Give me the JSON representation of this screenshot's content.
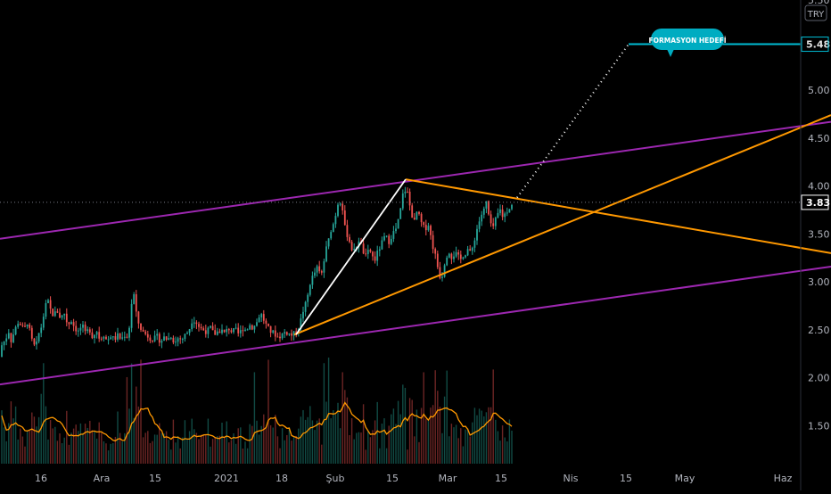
{
  "chart_data": {
    "type": "candlestick",
    "currency": "TRY",
    "current_price": 3.83,
    "target_price": 5.48,
    "target_label": "FORMASYON HEDEFİ",
    "y_ticks": [
      1.5,
      2.0,
      2.5,
      3.0,
      3.5,
      4.0,
      4.5,
      5.0
    ],
    "y_range": [
      1.25,
      5.82
    ],
    "x_ticks": [
      "16",
      "Ara",
      "15",
      "2021",
      "18",
      "Şub",
      "15",
      "Mar",
      "15",
      "Nis",
      "15",
      "May",
      "Haz"
    ],
    "grid": false,
    "price_path": [
      [
        0,
        2.22
      ],
      [
        3,
        2.4
      ],
      [
        6,
        2.36
      ],
      [
        9,
        2.52
      ],
      [
        12,
        2.38
      ],
      [
        16,
        2.48
      ],
      [
        20,
        2.58
      ],
      [
        24,
        2.55
      ],
      [
        27,
        2.48
      ],
      [
        30,
        2.6
      ],
      [
        33,
        2.5
      ],
      [
        36,
        2.38
      ],
      [
        40,
        2.3
      ],
      [
        43,
        2.45
      ],
      [
        46,
        2.52
      ],
      [
        50,
        2.7
      ],
      [
        53,
        2.82
      ],
      [
        56,
        2.72
      ],
      [
        60,
        2.65
      ],
      [
        64,
        2.7
      ],
      [
        68,
        2.62
      ],
      [
        72,
        2.68
      ],
      [
        76,
        2.55
      ],
      [
        80,
        2.6
      ],
      [
        84,
        2.52
      ],
      [
        88,
        2.48
      ],
      [
        92,
        2.55
      ],
      [
        96,
        2.45
      ],
      [
        100,
        2.52
      ],
      [
        104,
        2.42
      ],
      [
        108,
        2.5
      ],
      [
        112,
        2.4
      ],
      [
        116,
        2.46
      ],
      [
        120,
        2.38
      ],
      [
        124,
        2.44
      ],
      [
        128,
        2.4
      ],
      [
        132,
        2.44
      ],
      [
        136,
        2.4
      ],
      [
        140,
        2.45
      ],
      [
        144,
        2.42
      ],
      [
        147,
        2.75
      ],
      [
        150,
        2.88
      ],
      [
        153,
        2.65
      ],
      [
        156,
        2.55
      ],
      [
        160,
        2.48
      ],
      [
        164,
        2.45
      ],
      [
        168,
        2.42
      ],
      [
        172,
        2.4
      ],
      [
        176,
        2.43
      ],
      [
        180,
        2.38
      ],
      [
        184,
        2.42
      ],
      [
        188,
        2.4
      ],
      [
        192,
        2.44
      ],
      [
        196,
        2.36
      ],
      [
        200,
        2.42
      ],
      [
        204,
        2.4
      ],
      [
        208,
        2.45
      ],
      [
        212,
        2.5
      ],
      [
        216,
        2.62
      ],
      [
        220,
        2.58
      ],
      [
        224,
        2.52
      ],
      [
        228,
        2.5
      ],
      [
        232,
        2.48
      ],
      [
        236,
        2.52
      ],
      [
        240,
        2.45
      ],
      [
        244,
        2.48
      ],
      [
        248,
        2.5
      ],
      [
        252,
        2.46
      ],
      [
        256,
        2.52
      ],
      [
        260,
        2.48
      ],
      [
        264,
        2.5
      ],
      [
        268,
        2.45
      ],
      [
        272,
        2.52
      ],
      [
        276,
        2.5
      ],
      [
        280,
        2.55
      ],
      [
        284,
        2.52
      ],
      [
        288,
        2.58
      ],
      [
        292,
        2.68
      ],
      [
        296,
        2.6
      ],
      [
        300,
        2.52
      ],
      [
        304,
        2.48
      ],
      [
        308,
        2.46
      ],
      [
        312,
        2.42
      ],
      [
        316,
        2.45
      ],
      [
        320,
        2.48
      ],
      [
        324,
        2.46
      ],
      [
        328,
        2.44
      ],
      [
        332,
        2.48
      ],
      [
        336,
        2.55
      ],
      [
        340,
        2.7
      ],
      [
        344,
        2.8
      ],
      [
        348,
        3.0
      ],
      [
        352,
        3.08
      ],
      [
        356,
        3.15
      ],
      [
        360,
        3.05
      ],
      [
        363,
        3.2
      ],
      [
        366,
        3.35
      ],
      [
        369,
        3.45
      ],
      [
        372,
        3.58
      ],
      [
        375,
        3.62
      ],
      [
        378,
        3.8
      ],
      [
        381,
        3.86
      ],
      [
        384,
        3.78
      ],
      [
        387,
        3.55
      ],
      [
        390,
        3.48
      ],
      [
        393,
        3.4
      ],
      [
        396,
        3.3
      ],
      [
        399,
        3.35
      ],
      [
        402,
        3.45
      ],
      [
        405,
        3.38
      ],
      [
        408,
        3.3
      ],
      [
        411,
        3.25
      ],
      [
        414,
        3.35
      ],
      [
        417,
        3.28
      ],
      [
        420,
        3.22
      ],
      [
        424,
        3.32
      ],
      [
        428,
        3.4
      ],
      [
        432,
        3.48
      ],
      [
        436,
        3.42
      ],
      [
        440,
        3.5
      ],
      [
        444,
        3.55
      ],
      [
        448,
        3.68
      ],
      [
        452,
        3.92
      ],
      [
        456,
        3.98
      ],
      [
        459,
        3.82
      ],
      [
        462,
        3.7
      ],
      [
        465,
        3.62
      ],
      [
        468,
        3.75
      ],
      [
        471,
        3.65
      ],
      [
        474,
        3.58
      ],
      [
        477,
        3.55
      ],
      [
        480,
        3.62
      ],
      [
        483,
        3.48
      ],
      [
        486,
        3.35
      ],
      [
        489,
        3.25
      ],
      [
        492,
        3.1
      ],
      [
        495,
        3.02
      ],
      [
        498,
        3.18
      ],
      [
        501,
        3.28
      ],
      [
        504,
        3.32
      ],
      [
        507,
        3.25
      ],
      [
        510,
        3.3
      ],
      [
        513,
        3.28
      ],
      [
        516,
        3.22
      ],
      [
        519,
        3.28
      ],
      [
        522,
        3.3
      ],
      [
        525,
        3.35
      ],
      [
        528,
        3.28
      ],
      [
        531,
        3.4
      ],
      [
        534,
        3.52
      ],
      [
        537,
        3.62
      ],
      [
        540,
        3.7
      ],
      [
        543,
        3.75
      ],
      [
        546,
        3.85
      ],
      [
        549,
        3.62
      ],
      [
        552,
        3.55
      ],
      [
        555,
        3.62
      ],
      [
        558,
        3.7
      ],
      [
        561,
        3.75
      ],
      [
        564,
        3.68
      ],
      [
        567,
        3.72
      ],
      [
        570,
        3.76
      ],
      [
        573,
        3.8
      ],
      [
        576,
        3.83
      ]
    ],
    "lines": {
      "purple_upper": [
        [
          0,
          3.45
        ],
        [
          932,
          4.67
        ]
      ],
      "purple_lower": [
        [
          0,
          1.93
        ],
        [
          932,
          3.16
        ]
      ],
      "orange_rising": [
        [
          330,
          2.45
        ],
        [
          932,
          4.74
        ]
      ],
      "orange_falling": [
        [
          455,
          4.07
        ],
        [
          932,
          3.3
        ]
      ],
      "white_leg": [
        [
          332,
          2.45
        ],
        [
          455,
          4.07
        ]
      ],
      "dotted_projection": [
        [
          580,
          3.88
        ],
        [
          705,
          5.48
        ]
      ],
      "target_line": [
        [
          705,
          5.48
        ],
        [
          900,
          5.48
        ]
      ]
    },
    "colors": {
      "purple": "#9c27b0",
      "orange": "#ff9800",
      "white": "#ffffff",
      "cyan": "#00bcd4",
      "up": "#26a69a",
      "down": "#ef5350",
      "volume_ma": "#ff9800",
      "text": "#b2b5be"
    }
  }
}
